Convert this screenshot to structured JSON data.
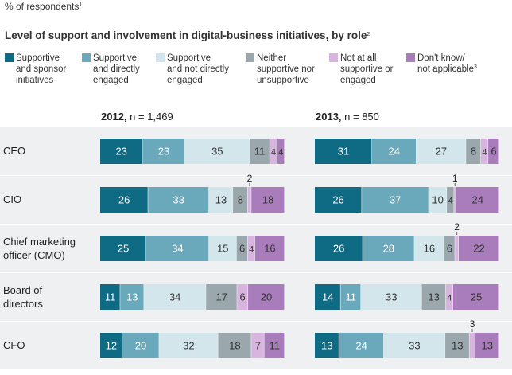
{
  "chart_data": {
    "type": "bar",
    "orientation": "horizontal",
    "stacked": true,
    "unit_label": "% of respondents",
    "unit_note": "1",
    "title": "Level of support and involvement in digital-business initiatives, by role",
    "title_note": "2",
    "legend": [
      {
        "lines": [
          "Supportive",
          "and sponsor",
          "initiatives"
        ],
        "color": "#0f6a84"
      },
      {
        "lines": [
          "Supportive",
          "and directly",
          "engaged"
        ],
        "color": "#6aa8bc"
      },
      {
        "lines": [
          "Supportive",
          "and not directly",
          "engaged"
        ],
        "color": "#d3e6ec"
      },
      {
        "lines": [
          "Neither",
          "supportive nor",
          "unsupportive"
        ],
        "color": "#9aa7ad"
      },
      {
        "lines": [
          "Not at all",
          "supportive or",
          "engaged"
        ],
        "color": "#d7b5de"
      },
      {
        "lines": [
          "Don't know/",
          "not applicable"
        ],
        "note": "3",
        "color": "#a97cbc"
      }
    ],
    "panels": [
      {
        "year": "2012,",
        "n_label": " n = 1,469"
      },
      {
        "year": "2013,",
        "n_label": " n = 850"
      }
    ],
    "categories": [
      [
        "CEO"
      ],
      [
        "CIO"
      ],
      [
        "Chief marketing",
        "officer (CMO)"
      ],
      [
        "Board of",
        "directors"
      ],
      [
        "CFO"
      ]
    ],
    "values": [
      [
        [
          23,
          23,
          35,
          11,
          4,
          4
        ],
        [
          31,
          24,
          27,
          8,
          4,
          6
        ]
      ],
      [
        [
          26,
          33,
          13,
          8,
          2,
          18
        ],
        [
          26,
          37,
          10,
          4,
          1,
          24
        ]
      ],
      [
        [
          25,
          34,
          15,
          6,
          4,
          16
        ],
        [
          26,
          28,
          16,
          6,
          2,
          22
        ]
      ],
      [
        [
          11,
          13,
          34,
          17,
          6,
          20
        ],
        [
          14,
          11,
          33,
          13,
          4,
          25
        ]
      ],
      [
        [
          12,
          20,
          32,
          18,
          7,
          11
        ],
        [
          13,
          24,
          33,
          13,
          3,
          13
        ]
      ]
    ],
    "colors": {
      "background": "#ffffff",
      "row_band": "#eef0f1",
      "text": "#222222",
      "label_light": "#ffffff",
      "label_dark": "#333333"
    }
  }
}
